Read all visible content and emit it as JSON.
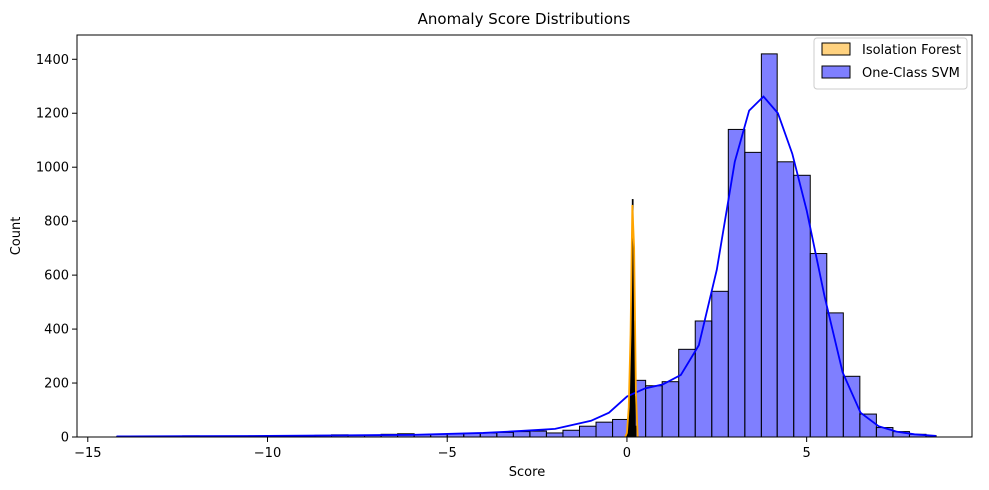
{
  "chart_data": {
    "type": "histogram",
    "title": "Anomaly Score Distributions",
    "xlabel": "Score",
    "ylabel": "Count",
    "xlim": [
      -15.3,
      9.6
    ],
    "ylim": [
      0,
      1490
    ],
    "xticks": [
      -15,
      -10,
      -5,
      0,
      5
    ],
    "yticks": [
      0,
      200,
      400,
      600,
      800,
      1000,
      1200,
      1400
    ],
    "grid": false,
    "legend_position": "top-right",
    "series": [
      {
        "name": "Isolation Forest",
        "color": "#ffa500",
        "bin_edges": [
          -0.03,
          -0.01,
          0.01,
          0.03,
          0.05,
          0.07,
          0.09,
          0.11,
          0.13,
          0.15,
          0.17,
          0.19,
          0.21,
          0.23,
          0.25
        ],
        "counts": [
          2,
          8,
          25,
          60,
          120,
          200,
          300,
          420,
          600,
          880,
          690,
          430,
          150,
          40
        ],
        "kde": {
          "x": [
            -0.05,
            0.0,
            0.05,
            0.1,
            0.15,
            0.2,
            0.25,
            0.3
          ],
          "y": [
            0,
            15,
            110,
            380,
            860,
            700,
            160,
            0
          ]
        }
      },
      {
        "name": "One-Class SVM",
        "color": "#0000ff",
        "bin_edges": [
          -14.2,
          -13.74,
          -13.28,
          -12.82,
          -12.36,
          -11.9,
          -11.44,
          -10.98,
          -10.52,
          -10.06,
          -9.6,
          -9.14,
          -8.68,
          -8.22,
          -7.76,
          -7.3,
          -6.84,
          -6.38,
          -5.92,
          -5.46,
          -5.0,
          -4.54,
          -4.08,
          -3.62,
          -3.16,
          -2.7,
          -2.24,
          -1.78,
          -1.32,
          -0.86,
          -0.4,
          0.06,
          0.52,
          0.98,
          1.44,
          1.9,
          2.36,
          2.82,
          3.28,
          3.74,
          4.18,
          4.64,
          5.1,
          5.56,
          6.02,
          6.48,
          6.94,
          7.4,
          7.86,
          8.32,
          8.6
        ],
        "counts": [
          1,
          1,
          2,
          3,
          4,
          3,
          2,
          3,
          4,
          3,
          4,
          5,
          6,
          8,
          6,
          7,
          10,
          12,
          9,
          11,
          12,
          14,
          15,
          17,
          20,
          22,
          15,
          25,
          40,
          55,
          65,
          210,
          190,
          205,
          325,
          430,
          540,
          1140,
          1055,
          1420,
          1020,
          970,
          680,
          460,
          225,
          85,
          35,
          20,
          10,
          5
        ],
        "kde": {
          "x": [
            -14.2,
            -12,
            -10,
            -8,
            -6,
            -4,
            -3,
            -2,
            -1,
            -0.5,
            0,
            0.5,
            1,
            1.5,
            2,
            2.5,
            3,
            3.4,
            3.8,
            4.2,
            4.6,
            5,
            5.5,
            6,
            6.5,
            7,
            7.5,
            8,
            8.6
          ],
          "y": [
            2,
            3,
            4,
            6,
            8,
            15,
            22,
            30,
            60,
            90,
            150,
            180,
            195,
            230,
            340,
            620,
            1020,
            1210,
            1262,
            1200,
            1050,
            840,
            520,
            240,
            90,
            40,
            20,
            10,
            4
          ]
        }
      }
    ]
  }
}
